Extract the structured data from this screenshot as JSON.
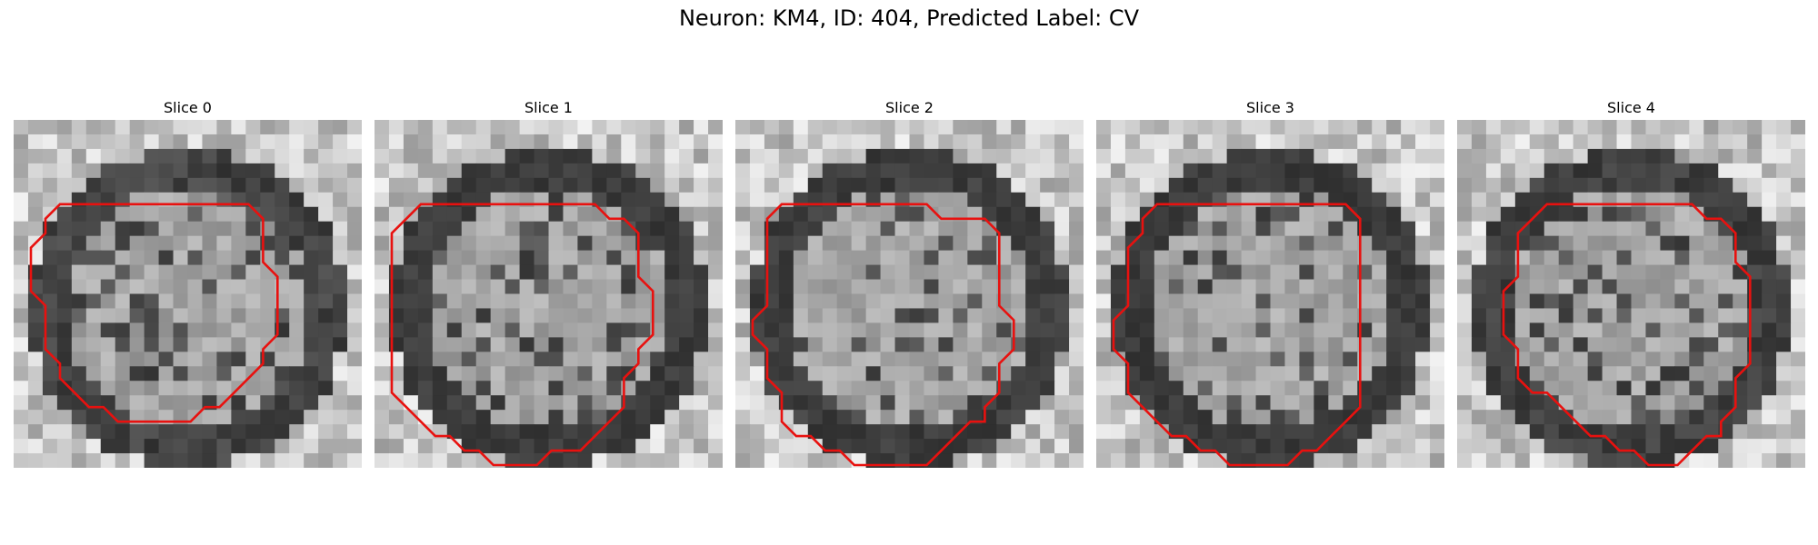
{
  "figure": {
    "title": "Neuron: KM4, ID: 404, Predicted Label: CV"
  },
  "panels": [
    {
      "title": "Slice 0",
      "contour": [
        [
          6,
          5
        ],
        [
          14,
          5
        ],
        [
          15,
          6
        ],
        [
          15,
          9
        ],
        [
          16,
          10
        ],
        [
          16,
          14
        ],
        [
          15,
          15
        ],
        [
          15,
          16
        ],
        [
          13,
          18
        ],
        [
          12,
          19
        ],
        [
          11,
          19
        ],
        [
          10,
          20
        ],
        [
          5,
          20
        ],
        [
          4,
          19
        ],
        [
          3,
          19
        ],
        [
          1,
          17
        ],
        [
          1,
          16
        ],
        [
          0,
          15
        ],
        [
          0,
          12
        ],
        [
          -1,
          11
        ],
        [
          -1,
          8
        ],
        [
          0,
          7
        ],
        [
          0,
          6
        ],
        [
          1,
          5
        ]
      ],
      "dark_ring": 0.35
    },
    {
      "title": "Slice 1",
      "contour": [
        [
          2,
          5
        ],
        [
          13,
          5
        ],
        [
          14,
          6
        ],
        [
          15,
          6
        ],
        [
          16,
          7
        ],
        [
          16,
          10
        ],
        [
          17,
          11
        ],
        [
          17,
          14
        ],
        [
          16,
          15
        ],
        [
          16,
          16
        ],
        [
          15,
          17
        ],
        [
          15,
          19
        ],
        [
          14,
          20
        ],
        [
          13,
          21
        ],
        [
          12,
          22
        ],
        [
          10,
          22
        ],
        [
          9,
          23
        ],
        [
          6,
          23
        ],
        [
          5,
          22
        ],
        [
          4,
          22
        ],
        [
          3,
          21
        ],
        [
          2,
          21
        ],
        [
          1,
          20
        ],
        [
          0,
          19
        ],
        [
          -1,
          18
        ],
        [
          -1,
          7
        ],
        [
          0,
          6
        ],
        [
          1,
          5
        ]
      ],
      "dark_ring": 0.55
    },
    {
      "title": "Slice 2",
      "contour": [
        [
          2,
          5
        ],
        [
          11,
          5
        ],
        [
          12,
          6
        ],
        [
          15,
          6
        ],
        [
          16,
          7
        ],
        [
          16,
          12
        ],
        [
          17,
          13
        ],
        [
          17,
          15
        ],
        [
          16,
          16
        ],
        [
          16,
          18
        ],
        [
          15,
          19
        ],
        [
          15,
          20
        ],
        [
          14,
          20
        ],
        [
          13,
          21
        ],
        [
          12,
          22
        ],
        [
          11,
          23
        ],
        [
          6,
          23
        ],
        [
          5,
          22
        ],
        [
          4,
          22
        ],
        [
          3,
          21
        ],
        [
          2,
          21
        ],
        [
          1,
          20
        ],
        [
          1,
          18
        ],
        [
          0,
          17
        ],
        [
          0,
          15
        ],
        [
          -1,
          14
        ],
        [
          -1,
          13
        ],
        [
          0,
          12
        ],
        [
          0,
          6
        ],
        [
          1,
          5
        ]
      ],
      "dark_ring": 0.5
    },
    {
      "title": "Slice 3",
      "contour": [
        [
          2,
          5
        ],
        [
          15,
          5
        ],
        [
          16,
          6
        ],
        [
          16,
          19
        ],
        [
          15,
          20
        ],
        [
          14,
          21
        ],
        [
          13,
          22
        ],
        [
          12,
          22
        ],
        [
          11,
          23
        ],
        [
          7,
          23
        ],
        [
          6,
          22
        ],
        [
          5,
          22
        ],
        [
          4,
          21
        ],
        [
          3,
          21
        ],
        [
          2,
          20
        ],
        [
          1,
          19
        ],
        [
          0,
          18
        ],
        [
          0,
          16
        ],
        [
          -1,
          15
        ],
        [
          -1,
          13
        ],
        [
          0,
          12
        ],
        [
          0,
          8
        ],
        [
          1,
          7
        ],
        [
          1,
          6
        ]
      ],
      "dark_ring": 0.6
    },
    {
      "title": "Slice 4",
      "contour": [
        [
          4,
          5
        ],
        [
          14,
          5
        ],
        [
          15,
          6
        ],
        [
          16,
          6
        ],
        [
          17,
          7
        ],
        [
          17,
          9
        ],
        [
          18,
          10
        ],
        [
          18,
          16
        ],
        [
          17,
          17
        ],
        [
          17,
          19
        ],
        [
          16,
          20
        ],
        [
          16,
          21
        ],
        [
          15,
          21
        ],
        [
          14,
          22
        ],
        [
          13,
          23
        ],
        [
          11,
          23
        ],
        [
          10,
          22
        ],
        [
          9,
          22
        ],
        [
          8,
          21
        ],
        [
          7,
          21
        ],
        [
          6,
          20
        ],
        [
          5,
          19
        ],
        [
          4,
          18
        ],
        [
          3,
          18
        ],
        [
          2,
          17
        ],
        [
          2,
          15
        ],
        [
          1,
          14
        ],
        [
          1,
          11
        ],
        [
          2,
          10
        ],
        [
          2,
          7
        ],
        [
          3,
          6
        ]
      ],
      "dark_ring": 0.45
    }
  ]
}
